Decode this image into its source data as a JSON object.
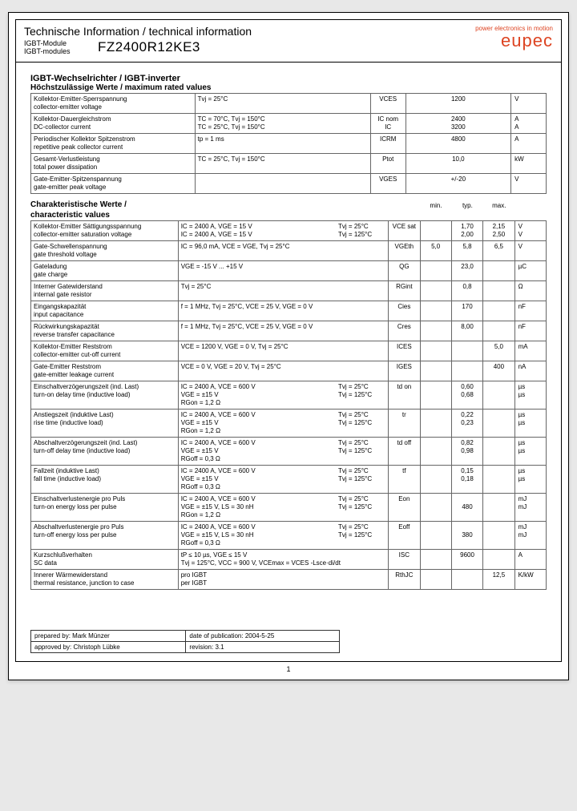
{
  "header": {
    "title": "Technische Information / technical information",
    "sub1": "IGBT-Module",
    "sub2": "IGBT-modules",
    "partno": "FZ2400R12KE3",
    "tagline": "power electronics in motion",
    "logo": "eupec"
  },
  "section1": {
    "title": "IGBT-Wechselrichter / IGBT-inverter",
    "sub": "Höchstzulässige Werte / maximum rated values"
  },
  "max_rows": [
    {
      "p1": "Kollektor-Emitter-Sperrspannung",
      "p2": "collector-emitter voltage",
      "c1": "Tvj = 25°C",
      "c2": "",
      "sym": "VCES",
      "min": "",
      "typ": "",
      "max": "1200",
      "unit": "V"
    },
    {
      "p1": "Kollektor-Dauergleichstrom",
      "p2": "DC-collector current",
      "c1": "TC = 70°C, Tvj = 150°C\nTC = 25°C, Tvj = 150°C",
      "c2": "",
      "sym": "IC nom\nIC",
      "min": "",
      "typ": "",
      "max": "2400\n3200",
      "unit": "A\nA"
    },
    {
      "p1": "Periodischer Kollektor Spitzenstrom",
      "p2": "repetitive peak collector current",
      "c1": "tp = 1 ms",
      "c2": "",
      "sym": "ICRM",
      "min": "",
      "typ": "",
      "max": "4800",
      "unit": "A"
    },
    {
      "p1": "Gesamt-Verlustleistung",
      "p2": "total power dissipation",
      "c1": "TC = 25°C, Tvj = 150°C",
      "c2": "",
      "sym": "Ptot",
      "min": "",
      "typ": "",
      "max": "10,0",
      "unit": "kW"
    },
    {
      "p1": "Gate-Emitter-Spitzenspannung",
      "p2": "gate-emitter peak voltage",
      "c1": "",
      "c2": "",
      "sym": "VGES",
      "min": "",
      "typ": "",
      "max": "+/-20",
      "unit": "V"
    }
  ],
  "section2": {
    "title": "Charakteristische Werte / characteristic values",
    "h_min": "min.",
    "h_typ": "typ.",
    "h_max": "max."
  },
  "char_rows": [
    {
      "p1": "Kollektor-Emitter Sättigungsspannung",
      "p2": "collector-emitter saturation voltage",
      "c1": "IC = 2400 A, VGE = 15 V\nIC = 2400 A, VGE = 15 V",
      "c2": "Tvj = 25°C\nTvj = 125°C",
      "sym": "VCE sat",
      "min": "",
      "typ": "1,70\n2,00",
      "max": "2,15\n2,50",
      "unit": "V\nV"
    },
    {
      "p1": "Gate-Schwellenspannung",
      "p2": "gate threshold voltage",
      "c1": "IC = 96,0 mA, VCE = VGE, Tvj = 25°C",
      "c2": "",
      "sym": "VGEth",
      "min": "5,0",
      "typ": "5,8",
      "max": "6,5",
      "unit": "V"
    },
    {
      "p1": "Gateladung",
      "p2": "gate charge",
      "c1": "VGE = -15 V ... +15 V",
      "c2": "",
      "sym": "QG",
      "min": "",
      "typ": "23,0",
      "max": "",
      "unit": "µC"
    },
    {
      "p1": "Interner Gatewiderstand",
      "p2": "internal gate resistor",
      "c1": "Tvj = 25°C",
      "c2": "",
      "sym": "RGint",
      "min": "",
      "typ": "0,8",
      "max": "",
      "unit": "Ω"
    },
    {
      "p1": "Eingangskapazität",
      "p2": "input capacitance",
      "c1": "f = 1 MHz, Tvj = 25°C, VCE = 25 V, VGE = 0 V",
      "c2": "",
      "sym": "Cies",
      "min": "",
      "typ": "170",
      "max": "",
      "unit": "nF"
    },
    {
      "p1": "Rückwirkungskapazität",
      "p2": "reverse transfer capacitance",
      "c1": "f = 1 MHz, Tvj = 25°C, VCE = 25 V, VGE = 0 V",
      "c2": "",
      "sym": "Cres",
      "min": "",
      "typ": "8,00",
      "max": "",
      "unit": "nF"
    },
    {
      "p1": "Kollektor-Emitter Reststrom",
      "p2": "collector-emitter cut-off current",
      "c1": "VCE = 1200 V, VGE = 0 V, Tvj = 25°C",
      "c2": "",
      "sym": "ICES",
      "min": "",
      "typ": "",
      "max": "5,0",
      "unit": "mA"
    },
    {
      "p1": "Gate-Emitter Reststrom",
      "p2": "gate-emitter leakage current",
      "c1": "VCE = 0 V, VGE = 20 V, Tvj = 25°C",
      "c2": "",
      "sym": "IGES",
      "min": "",
      "typ": "",
      "max": "400",
      "unit": "nA"
    },
    {
      "p1": "Einschaltverzögerungszeit (ind. Last)",
      "p2": "turn-on delay time (inductive load)",
      "c1": "IC = 2400 A, VCE = 600 V\nVGE = ±15 V\nRGon = 1,2 Ω",
      "c2": "Tvj = 25°C\nTvj = 125°C",
      "sym": "td on",
      "min": "",
      "typ": "0,60\n0,68",
      "max": "",
      "unit": "µs\nµs"
    },
    {
      "p1": "Anstiegszeit (induktive Last)",
      "p2": "rise time (inductive load)",
      "c1": "IC = 2400 A, VCE = 600 V\nVGE = ±15 V\nRGon = 1,2 Ω",
      "c2": "Tvj = 25°C\nTvj = 125°C",
      "sym": "tr",
      "min": "",
      "typ": "0,22\n0,23",
      "max": "",
      "unit": "µs\nµs"
    },
    {
      "p1": "Abschaltverzögerungszeit (ind. Last)",
      "p2": "turn-off delay time (inductive load)",
      "c1": "IC = 2400 A, VCE = 600 V\nVGE = ±15 V\nRGoff = 0,3 Ω",
      "c2": "Tvj = 25°C\nTvj = 125°C",
      "sym": "td off",
      "min": "",
      "typ": "0,82\n0,98",
      "max": "",
      "unit": "µs\nµs"
    },
    {
      "p1": "Fallzeit (induktive Last)",
      "p2": "fall time (inductive load)",
      "c1": "IC = 2400 A, VCE = 600 V\nVGE = ±15 V\nRGoff = 0,3 Ω",
      "c2": "Tvj = 25°C\nTvj = 125°C",
      "sym": "tf",
      "min": "",
      "typ": "0,15\n0,18",
      "max": "",
      "unit": "µs\nµs"
    },
    {
      "p1": "Einschaltverlustenergie pro Puls",
      "p2": "turn-on energy loss per pulse",
      "c1": "IC = 2400 A, VCE = 600 V\nVGE = ±15 V, LS = 30 nH\nRGon = 1,2 Ω",
      "c2": "Tvj = 25°C\nTvj = 125°C",
      "sym": "Eon",
      "min": "",
      "typ": "\n480",
      "max": "",
      "unit": "mJ\nmJ"
    },
    {
      "p1": "Abschaltverlustenergie pro Puls",
      "p2": "turn-off energy loss per pulse",
      "c1": "IC = 2400 A, VCE = 600 V\nVGE = ±15 V, LS = 30 nH\nRGoff = 0,3 Ω",
      "c2": "Tvj = 25°C\nTvj = 125°C",
      "sym": "Eoff",
      "min": "",
      "typ": "\n380",
      "max": "",
      "unit": "mJ\nmJ"
    },
    {
      "p1": "Kurzschlußverhalten",
      "p2": "SC data",
      "c1": "tP ≤ 10 µs, VGE ≤ 15 V\nTvj = 125°C, VCC = 900 V, VCEmax = VCES -Lsce·di/dt",
      "c2": "",
      "sym": "ISC",
      "min": "",
      "typ": "9600",
      "max": "",
      "unit": "A"
    },
    {
      "p1": "Innerer Wärmewiderstand",
      "p2": "thermal resistance, junction to case",
      "c1": "pro IGBT\nper IGBT",
      "c2": "",
      "sym": "RthJC",
      "min": "",
      "typ": "",
      "max": "12,5",
      "unit": "K/kW"
    }
  ],
  "footer": {
    "prep_l": "prepared by:",
    "prep_v": "Mark Münzer",
    "date_l": "date of publication:",
    "date_v": "2004-5-25",
    "appr_l": "approved by:",
    "appr_v": "Christoph Lübke",
    "rev_l": "revision:",
    "rev_v": "3.1"
  },
  "pagenum": "1"
}
